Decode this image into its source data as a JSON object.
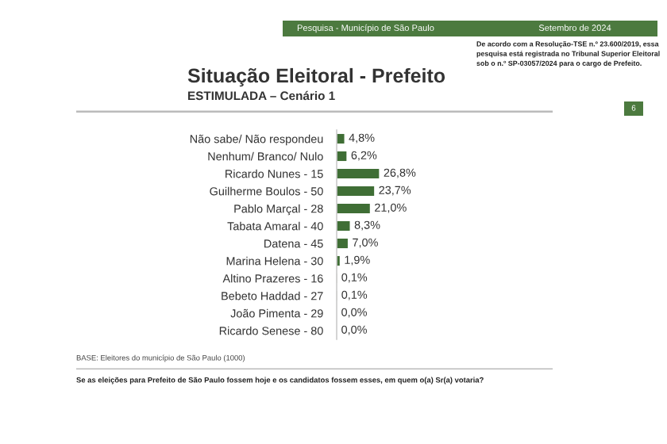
{
  "chart_data": {
    "type": "bar",
    "orientation": "horizontal",
    "title": "Situação Eleitoral - Prefeito",
    "subtitle": "ESTIMULADA – Cenário 1",
    "categories": [
      "Não sabe/ Não respondeu",
      "Nenhum/ Branco/ Nulo",
      "Ricardo Nunes - 15",
      "Guilherme Boulos - 50",
      "Pablo Marçal - 28",
      "Tabata Amaral - 40",
      "Datena - 45",
      "Marina Helena - 30",
      "Altino Prazeres - 16",
      "Bebeto Haddad - 27",
      "João Pimenta - 29",
      "Ricardo Senese - 80"
    ],
    "values": [
      4.8,
      6.2,
      26.8,
      23.7,
      21.0,
      8.3,
      7.0,
      1.9,
      0.1,
      0.1,
      0.0,
      0.0
    ],
    "value_labels": [
      "4,8%",
      "6,2%",
      "26,8%",
      "23,7%",
      "21,0%",
      "8,3%",
      "7,0%",
      "1,9%",
      "0,1%",
      "0,1%",
      "0,0%",
      "0,0%"
    ],
    "color": "#3f6e35",
    "annotations": [
      "Pesquisa - Município de São Paulo",
      "Setembro de 2024",
      "De acordo com a Resolução-TSE n.º 23.600/2019, essa pesquisa está registrada no Tribunal Superior Eleitoral sob o n.º SP-03057/2024 para o cargo de Prefeito.",
      "6",
      "BASE: Eleitores do município de São Paulo (1000)",
      "Se as eleições para Prefeito de São Paulo fossem hoje e os candidatos fossem esses, em quem o(a) Sr(a) votaria?"
    ]
  }
}
